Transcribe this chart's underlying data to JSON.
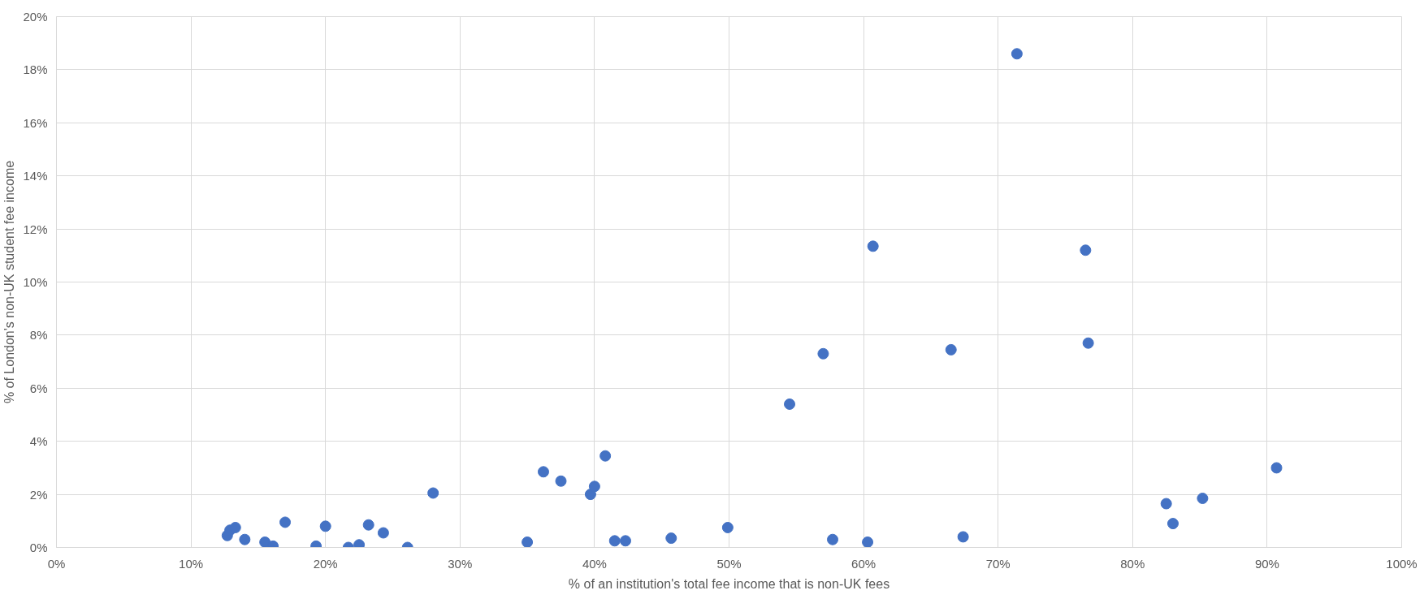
{
  "chart_data": {
    "type": "scatter",
    "xlabel": "% of an institution's total fee income that is non-UK fees",
    "ylabel": "% of London's non-UK student fee income",
    "x": [
      12.7,
      12.9,
      13.3,
      14,
      15.5,
      16.1,
      17,
      19.3,
      20,
      21.7,
      22.5,
      23.2,
      24.3,
      26.1,
      28,
      35,
      36.2,
      37.5,
      39.7,
      40,
      40.8,
      41.5,
      42.3,
      45.7,
      49.9,
      54.5,
      57,
      57.7,
      60.3,
      60.7,
      66.5,
      67.4,
      71.4,
      76.5,
      76.7,
      82.5,
      83,
      85.2,
      90.7
    ],
    "series": [
      {
        "color": "#4472c4",
        "values": [
          0.45,
          0.65,
          0.75,
          0.3,
          0.2,
          0.05,
          0.95,
          0.05,
          0.8,
          0,
          0.1,
          0.85,
          0.55,
          0,
          2.05,
          0.2,
          2.85,
          2.5,
          2.0,
          2.3,
          3.45,
          0.25,
          0.25,
          0.35,
          0.75,
          5.4,
          7.3,
          0.3,
          0.2,
          11.35,
          7.45,
          0.4,
          18.6,
          11.2,
          7.7,
          1.65,
          0.9,
          1.85,
          3.0
        ]
      }
    ],
    "xlim": [
      0,
      100
    ],
    "ylim": [
      0,
      20
    ],
    "xticks": [
      {
        "value": 0,
        "label": "0%"
      },
      {
        "value": 10,
        "label": "10%"
      },
      {
        "value": 20,
        "label": "20%"
      },
      {
        "value": 30,
        "label": "30%"
      },
      {
        "value": 40,
        "label": "40%"
      },
      {
        "value": 50,
        "label": "50%"
      },
      {
        "value": 60,
        "label": "60%"
      },
      {
        "value": 70,
        "label": "70%"
      },
      {
        "value": 80,
        "label": "80%"
      },
      {
        "value": 90,
        "label": "90%"
      },
      {
        "value": 100,
        "label": "100%"
      }
    ],
    "yticks": [
      {
        "value": 0,
        "label": "0%"
      },
      {
        "value": 2,
        "label": "2%"
      },
      {
        "value": 4,
        "label": "4%"
      },
      {
        "value": 6,
        "label": "6%"
      },
      {
        "value": 8,
        "label": "8%"
      },
      {
        "value": 10,
        "label": "10%"
      },
      {
        "value": 12,
        "label": "12%"
      },
      {
        "value": 14,
        "label": "14%"
      },
      {
        "value": 16,
        "label": "16%"
      },
      {
        "value": 18,
        "label": "18%"
      },
      {
        "value": 20,
        "label": "20%"
      }
    ],
    "grid": true,
    "marker": "circle"
  }
}
